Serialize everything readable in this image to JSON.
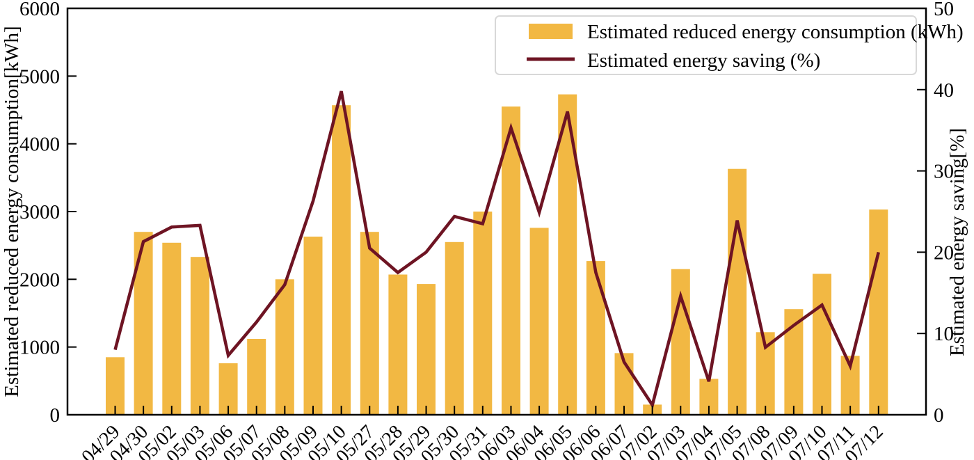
{
  "figure": {
    "background_color": "#ffffff",
    "frame_color": "#000000"
  },
  "chart_data": {
    "type": "bar",
    "combo": "bar+line",
    "categories": [
      "04/29",
      "04/30",
      "05/02",
      "05/03",
      "05/06",
      "05/07",
      "05/08",
      "05/09",
      "05/10",
      "05/27",
      "05/28",
      "05/29",
      "05/30",
      "05/31",
      "06/03",
      "06/04",
      "06/05",
      "06/06",
      "06/07",
      "07/02",
      "07/03",
      "07/04",
      "07/05",
      "07/08",
      "07/09",
      "07/10",
      "07/11",
      "07/12"
    ],
    "series": [
      {
        "name": "Estimated reduced energy consumption (kWh)",
        "type": "bar",
        "axis": "left",
        "color": "#F2B843",
        "values": [
          850,
          2700,
          2540,
          2330,
          760,
          1120,
          2000,
          2630,
          4570,
          2700,
          2070,
          1930,
          2550,
          3000,
          4550,
          2760,
          4730,
          2270,
          910,
          150,
          2150,
          530,
          3630,
          1220,
          1560,
          2080,
          870,
          3030
        ]
      },
      {
        "name": "Estimated energy saving (%)",
        "type": "line",
        "axis": "right",
        "color": "#6E1423",
        "values": [
          8.0,
          21.3,
          23.1,
          23.3,
          7.3,
          11.4,
          16.0,
          26.3,
          39.8,
          20.5,
          17.5,
          20.0,
          24.4,
          23.5,
          35.3,
          24.9,
          37.3,
          17.5,
          6.5,
          1.2,
          14.6,
          4.1,
          23.9,
          8.3,
          11.0,
          13.5,
          6.0,
          20.0
        ]
      }
    ],
    "left_axis": {
      "label": "Estimated reduced energy consumption[kWh]",
      "min": 0,
      "max": 6000,
      "ticks": [
        0,
        1000,
        2000,
        3000,
        4000,
        5000,
        6000
      ]
    },
    "right_axis": {
      "label": "Estimated energy saving[%]",
      "min": 0,
      "max": 50,
      "ticks": [
        0,
        10,
        20,
        30,
        40,
        50
      ]
    },
    "x_axis": {
      "tick_label_rotation_deg": 45
    },
    "legend": {
      "position": "upper right",
      "border_color": "#d8d8d8",
      "background": "#ffffff"
    },
    "grid": false
  }
}
